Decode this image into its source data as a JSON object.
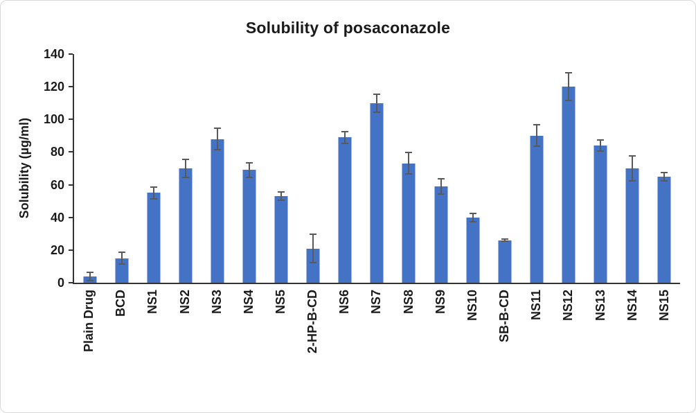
{
  "chart_data": {
    "type": "bar",
    "title": "Solubility of posaconazole",
    "xlabel": "",
    "ylabel": "Solubility (µg/ml)",
    "ylim": [
      0,
      140
    ],
    "yticks": [
      0,
      20,
      40,
      60,
      80,
      100,
      120,
      140
    ],
    "grid": false,
    "legend": "none",
    "bar_color": "#4472C4",
    "error_bar_color": "#595959",
    "axis_color": "#333333",
    "categories": [
      "Plain Drug",
      "BCD",
      "NS1",
      "NS2",
      "NS3",
      "NS4",
      "NS5",
      "2-HP-B-CD",
      "NS6",
      "NS7",
      "NS8",
      "NS9",
      "NS10",
      "SB-B-CD",
      "NS11",
      "NS12",
      "NS13",
      "NS14",
      "NS15"
    ],
    "values": [
      4,
      15,
      55,
      70,
      88,
      69,
      53,
      21,
      89,
      110,
      73,
      59,
      40,
      26,
      90,
      120,
      84,
      70,
      65
    ],
    "errors": [
      3,
      4,
      4,
      6,
      7,
      5,
      3,
      9,
      4,
      6,
      7,
      5,
      3,
      1,
      7,
      9,
      4,
      8,
      3
    ]
  }
}
